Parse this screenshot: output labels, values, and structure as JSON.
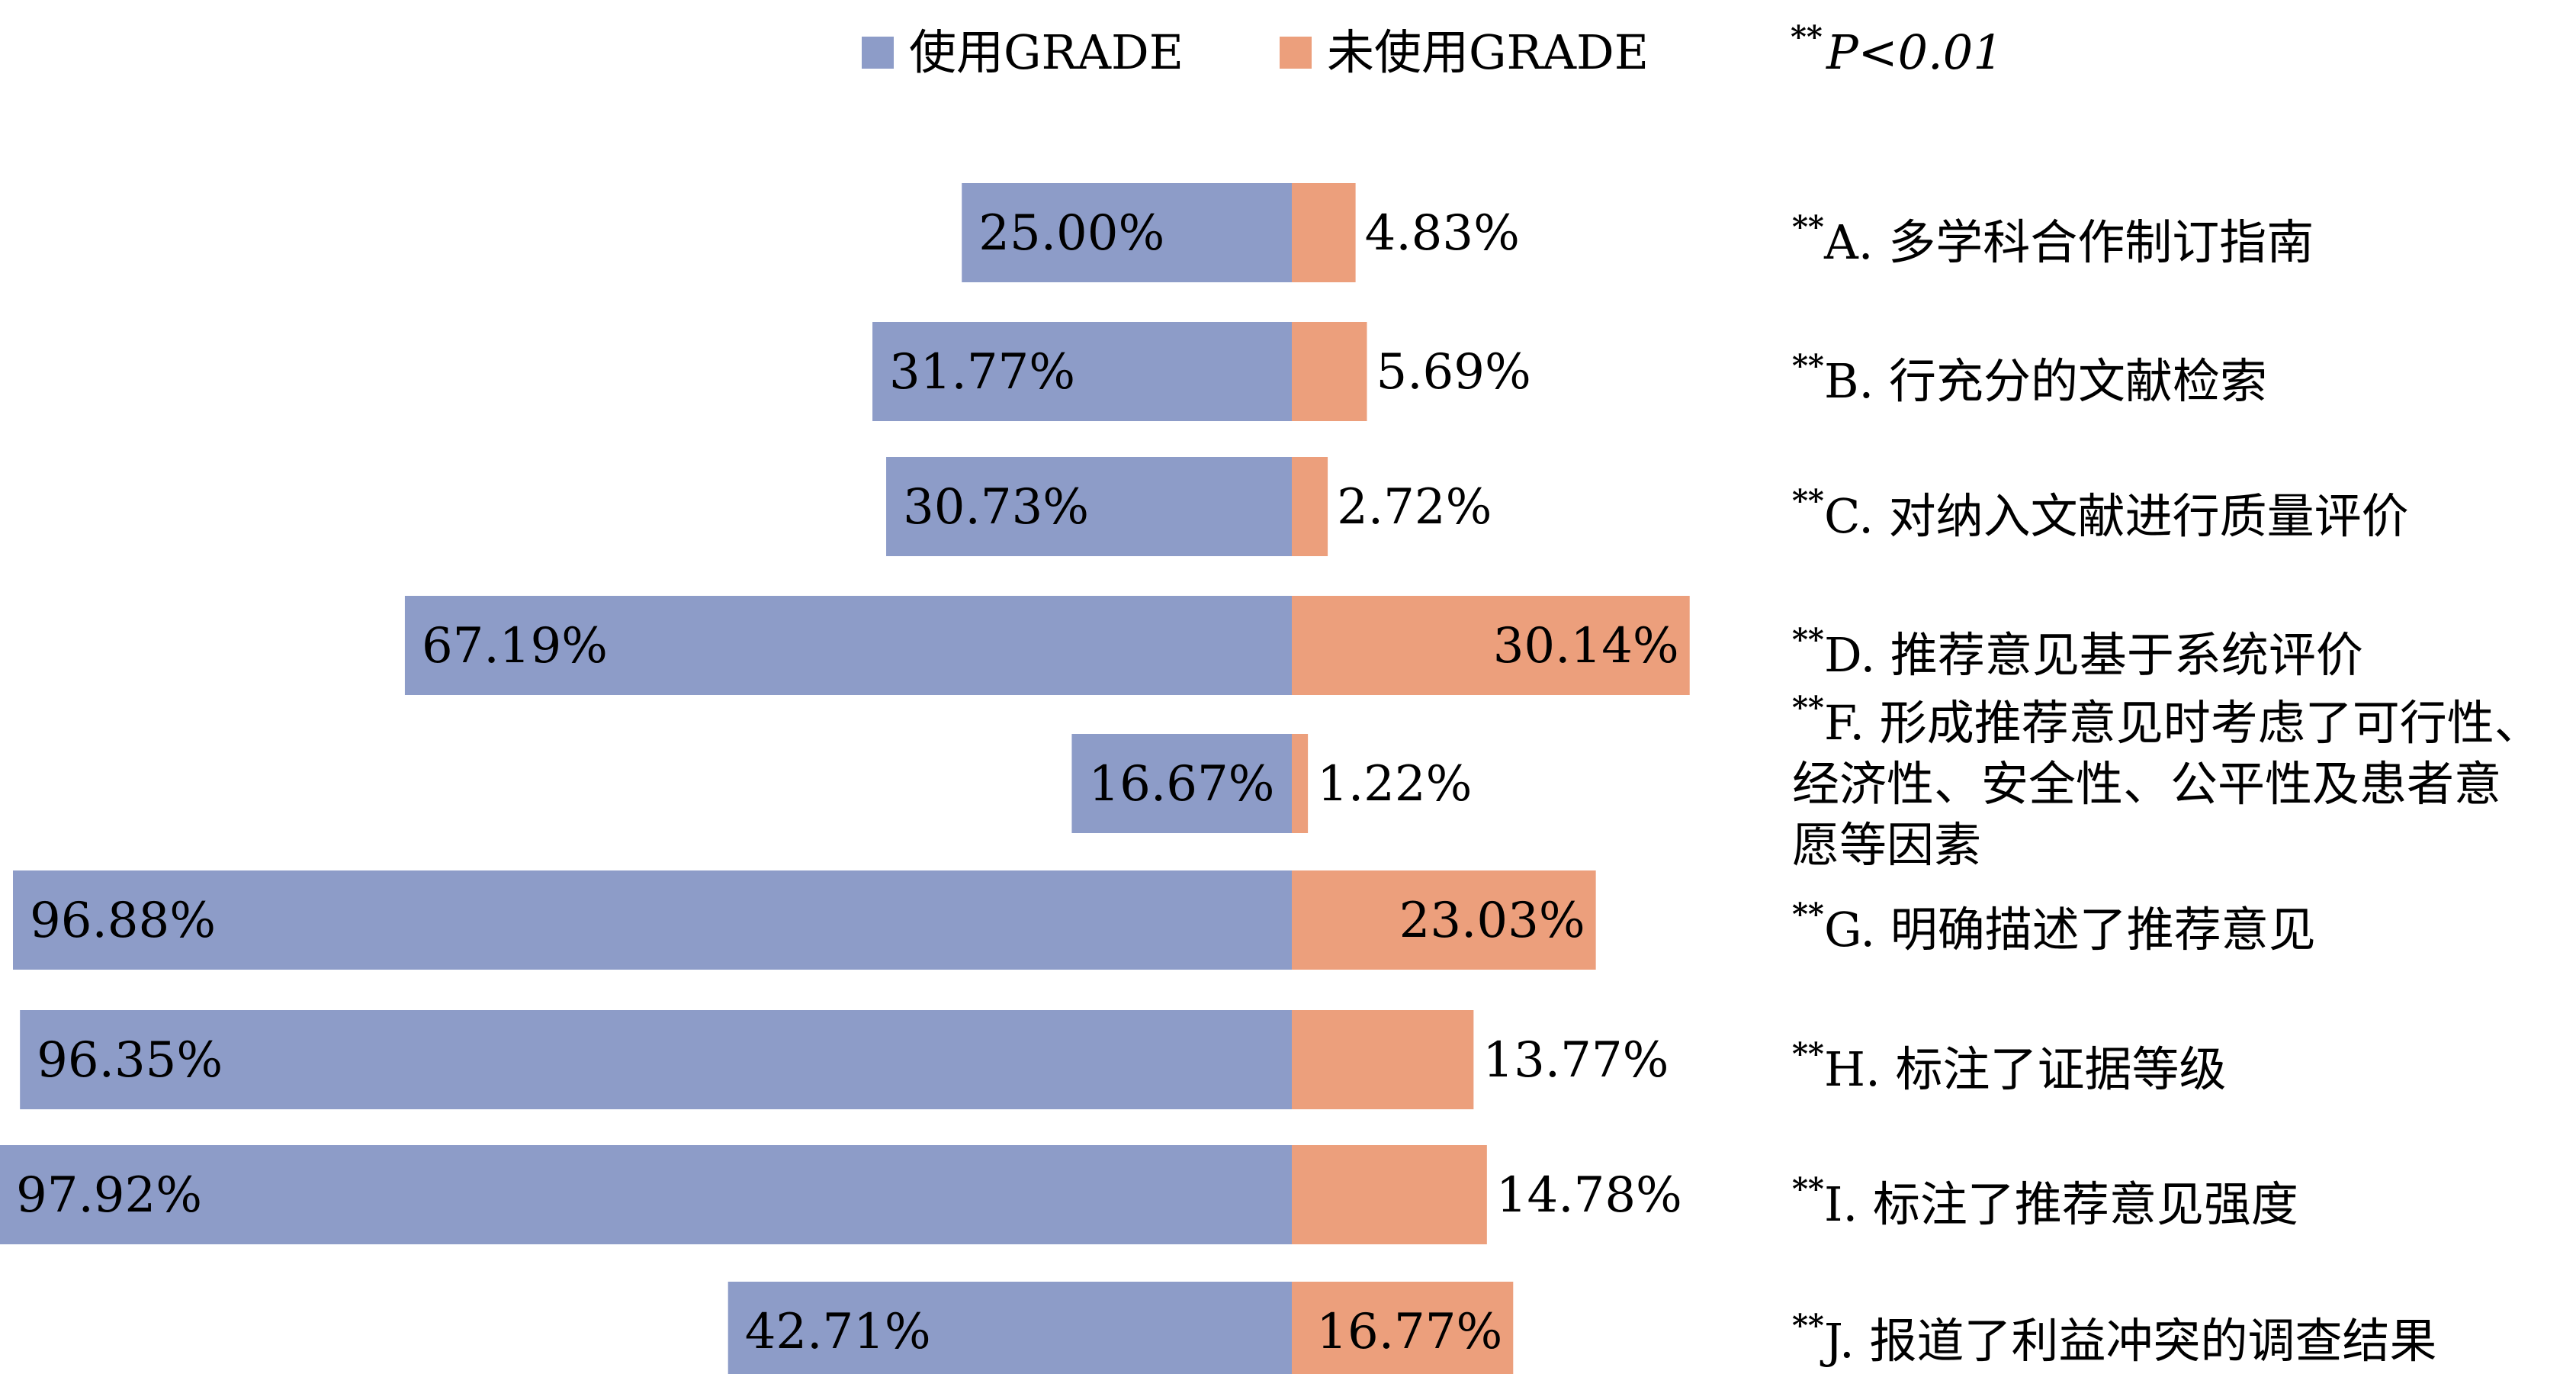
{
  "chart_data": {
    "type": "bar",
    "orientation": "horizontal",
    "layout": "diverging",
    "legend": {
      "placement": "top"
    },
    "significance_note": {
      "stars": "**",
      "text": "P<0.01"
    },
    "colors": {
      "使用GRADE": "#8d9cc8",
      "未使用GRADE": "#ec9f7c"
    },
    "series": [
      {
        "name": "使用GRADE",
        "values": [
          25.0,
          31.77,
          30.73,
          67.19,
          16.67,
          96.88,
          96.35,
          97.92,
          42.71
        ],
        "labels": [
          "25.00%",
          "31.77%",
          "30.73%",
          "67.19%",
          "16.67%",
          "96.88%",
          "96.35%",
          "97.92%",
          "42.71%"
        ]
      },
      {
        "name": "未使用GRADE",
        "values": [
          4.83,
          5.69,
          2.72,
          30.14,
          1.22,
          23.03,
          13.77,
          14.78,
          16.77
        ],
        "labels": [
          "4.83%",
          "5.69%",
          "2.72%",
          "30.14%",
          "1.22%",
          "23.03%",
          "13.77%",
          "14.78%",
          "16.77%"
        ]
      }
    ],
    "categories": [
      {
        "stars": "**",
        "lines": [
          "A. 多学科合作制订指南"
        ]
      },
      {
        "stars": "**",
        "lines": [
          "B. 行充分的文献检索"
        ]
      },
      {
        "stars": "**",
        "lines": [
          "C. 对纳入文献进行质量评价"
        ]
      },
      {
        "stars": "**",
        "lines": [
          "D. 推荐意见基于系统评价"
        ]
      },
      {
        "stars": "**",
        "lines": [
          "F. 形成推荐意见时考虑了可行性、",
          "经济性、安全性、公平性及患者意",
          "愿等因素"
        ]
      },
      {
        "stars": "**",
        "lines": [
          "G. 明确描述了推荐意见"
        ]
      },
      {
        "stars": "**",
        "lines": [
          "H. 标注了证据等级"
        ]
      },
      {
        "stars": "**",
        "lines": [
          "I. 标注了推荐意见强度"
        ]
      },
      {
        "stars": "**",
        "lines": [
          "J. 报道了利益冲突的调查结果"
        ]
      }
    ]
  }
}
